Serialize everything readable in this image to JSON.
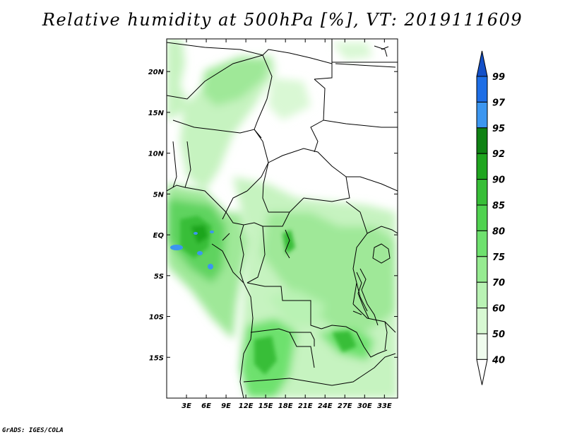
{
  "title": "Relative humidity at 500hPa [%], VT: 2019111609",
  "credit": "GrADS: IGES/COLA",
  "map": {
    "lon_range": [
      0,
      35
    ],
    "lat_range": [
      -20,
      24
    ],
    "lat_ticks": [
      "20N",
      "15N",
      "10N",
      "5N",
      "EQ",
      "5S",
      "10S",
      "15S"
    ],
    "lon_ticks": [
      "3E",
      "6E",
      "9E",
      "12E",
      "15E",
      "18E",
      "21E",
      "24E",
      "27E",
      "30E",
      "33E"
    ]
  },
  "colorbar": {
    "levels": [
      "99",
      "97",
      "95",
      "92",
      "90",
      "85",
      "80",
      "75",
      "70",
      "60",
      "50",
      "40"
    ],
    "colors": [
      "#1450c8",
      "#1e6ee6",
      "#3c96f0",
      "#0f8214",
      "#1fa51f",
      "#37be37",
      "#50d250",
      "#6ee16e",
      "#96eb91",
      "#b9f2b4",
      "#d7f8d2",
      "#f0fcee",
      "#ffffff"
    ]
  }
}
